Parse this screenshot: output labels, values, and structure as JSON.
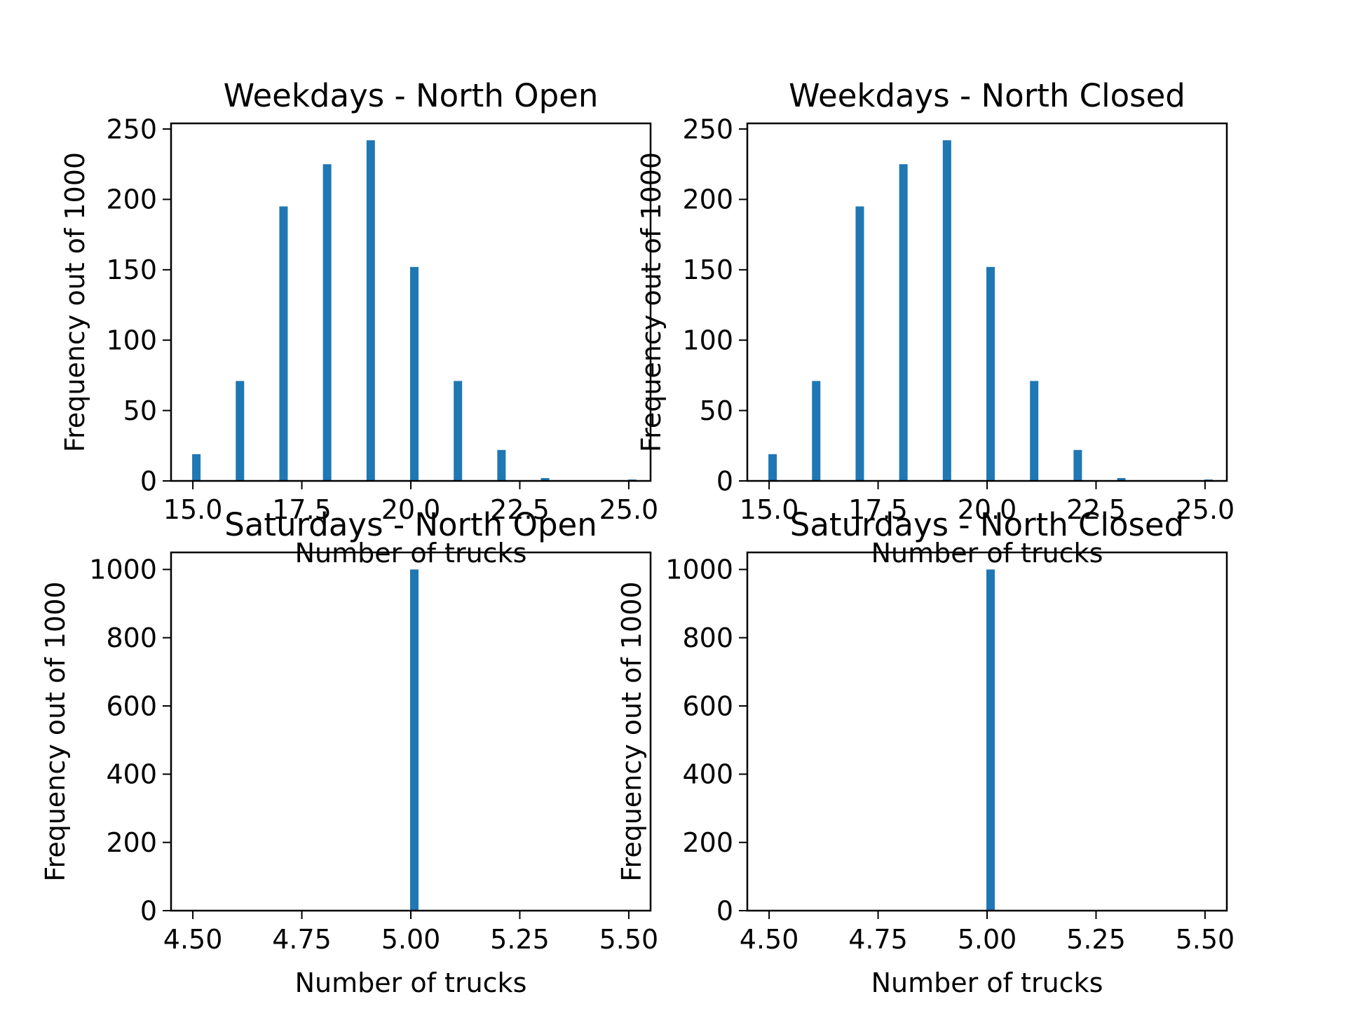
{
  "colors": {
    "bar": "#1f77b4",
    "axis": "#000000",
    "background": "#ffffff"
  },
  "chart_data": [
    {
      "type": "bar",
      "title": "Weekdays - North Open",
      "xlabel": "Number of trucks",
      "ylabel": "Frequency out of 1000",
      "xlim": [
        14.5,
        25.5
      ],
      "ylim": [
        0,
        254
      ],
      "xticks": [
        "15.0",
        "17.5",
        "20.0",
        "22.5",
        "25.0"
      ],
      "yticks": [
        "0",
        "50",
        "100",
        "150",
        "200",
        "250"
      ],
      "x": [
        15,
        16,
        17,
        18,
        19,
        20,
        21,
        22,
        23,
        25
      ],
      "values": [
        19,
        71,
        195,
        225,
        242,
        152,
        71,
        22,
        2,
        1
      ],
      "grid": false
    },
    {
      "type": "bar",
      "title": "Weekdays - North Closed",
      "xlabel": "Number of trucks",
      "ylabel": "Frequency out of 1000",
      "xlim": [
        14.5,
        25.5
      ],
      "ylim": [
        0,
        254
      ],
      "xticks": [
        "15.0",
        "17.5",
        "20.0",
        "22.5",
        "25.0"
      ],
      "yticks": [
        "0",
        "50",
        "100",
        "150",
        "200",
        "250"
      ],
      "x": [
        15,
        16,
        17,
        18,
        19,
        20,
        21,
        22,
        23,
        25
      ],
      "values": [
        19,
        71,
        195,
        225,
        242,
        152,
        71,
        22,
        2,
        1
      ],
      "grid": false
    },
    {
      "type": "bar",
      "title": "Saturdays - North Open",
      "xlabel": "Number of trucks",
      "ylabel": "Frequency out of 1000",
      "xlim": [
        4.45,
        5.55
      ],
      "ylim": [
        0,
        1050
      ],
      "xticks": [
        "4.50",
        "4.75",
        "5.00",
        "5.25",
        "5.50"
      ],
      "yticks": [
        "0",
        "200",
        "400",
        "600",
        "800",
        "1000"
      ],
      "x": [
        5.0
      ],
      "values": [
        1000
      ],
      "grid": false
    },
    {
      "type": "bar",
      "title": "Saturdays - North Closed",
      "xlabel": "Number of trucks",
      "ylabel": "Frequency out of 1000",
      "xlim": [
        4.45,
        5.55
      ],
      "ylim": [
        0,
        1050
      ],
      "xticks": [
        "4.50",
        "4.75",
        "5.00",
        "5.25",
        "5.50"
      ],
      "yticks": [
        "0",
        "200",
        "400",
        "600",
        "800",
        "1000"
      ],
      "x": [
        5.0
      ],
      "values": [
        1000
      ],
      "grid": false
    }
  ]
}
